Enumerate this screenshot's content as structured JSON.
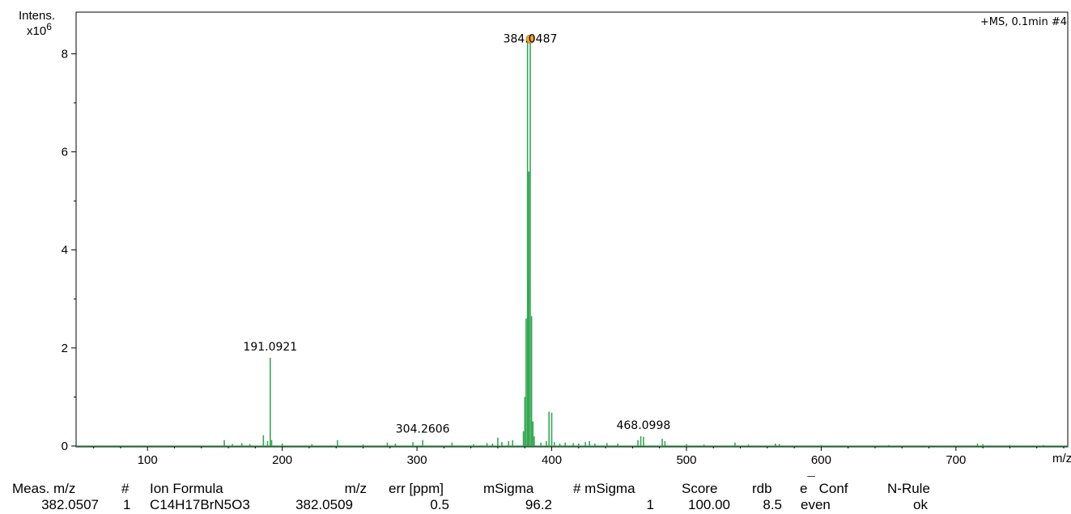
{
  "chart_data": {
    "type": "line",
    "title": "",
    "scan_label": "+MS, 0.1min #4",
    "ylabel": "Intens.",
    "y_multiplier": "x10",
    "y_exponent": "6",
    "xlabel": "m/z",
    "xlim": [
      47,
      783
    ],
    "ylim": [
      0,
      8.85
    ],
    "x_ticks": [
      "100",
      "200",
      "300",
      "400",
      "500",
      "600",
      "700"
    ],
    "y_ticks": [
      "0",
      "2",
      "4",
      "6",
      "8"
    ],
    "series_color": "#33a852",
    "peaks": [
      {
        "x": 157.0,
        "y": 0.12
      },
      {
        "x": 163.0,
        "y": 0.04
      },
      {
        "x": 170.0,
        "y": 0.06
      },
      {
        "x": 176.0,
        "y": 0.04
      },
      {
        "x": 186.0,
        "y": 0.22
      },
      {
        "x": 189.1,
        "y": 0.1
      },
      {
        "x": 191.09,
        "y": 1.8
      },
      {
        "x": 192.1,
        "y": 0.12
      },
      {
        "x": 200.0,
        "y": 0.05
      },
      {
        "x": 222.0,
        "y": 0.04
      },
      {
        "x": 241.0,
        "y": 0.12
      },
      {
        "x": 260.0,
        "y": 0.03
      },
      {
        "x": 278.0,
        "y": 0.07
      },
      {
        "x": 284.0,
        "y": 0.05
      },
      {
        "x": 297.0,
        "y": 0.08
      },
      {
        "x": 304.26,
        "y": 0.12
      },
      {
        "x": 326.0,
        "y": 0.07
      },
      {
        "x": 342.0,
        "y": 0.04
      },
      {
        "x": 352.0,
        "y": 0.06
      },
      {
        "x": 356.0,
        "y": 0.05
      },
      {
        "x": 360.0,
        "y": 0.17
      },
      {
        "x": 363.0,
        "y": 0.08
      },
      {
        "x": 368.0,
        "y": 0.1
      },
      {
        "x": 371.0,
        "y": 0.12
      },
      {
        "x": 379.0,
        "y": 0.3
      },
      {
        "x": 380.05,
        "y": 1.0
      },
      {
        "x": 381.0,
        "y": 2.6
      },
      {
        "x": 382.05,
        "y": 8.3
      },
      {
        "x": 382.6,
        "y": 3.4
      },
      {
        "x": 383.05,
        "y": 5.6
      },
      {
        "x": 384.05,
        "y": 8.3
      },
      {
        "x": 385.05,
        "y": 2.65
      },
      {
        "x": 386.05,
        "y": 0.5
      },
      {
        "x": 387.0,
        "y": 0.2
      },
      {
        "x": 392.0,
        "y": 0.07
      },
      {
        "x": 396.0,
        "y": 0.1
      },
      {
        "x": 398.0,
        "y": 0.7
      },
      {
        "x": 400.0,
        "y": 0.68
      },
      {
        "x": 402.0,
        "y": 0.08
      },
      {
        "x": 406.0,
        "y": 0.05
      },
      {
        "x": 410.0,
        "y": 0.07
      },
      {
        "x": 416.0,
        "y": 0.06
      },
      {
        "x": 420.0,
        "y": 0.05
      },
      {
        "x": 425.0,
        "y": 0.08
      },
      {
        "x": 428.0,
        "y": 0.1
      },
      {
        "x": 432.0,
        "y": 0.05
      },
      {
        "x": 441.0,
        "y": 0.06
      },
      {
        "x": 449.0,
        "y": 0.05
      },
      {
        "x": 464.0,
        "y": 0.12
      },
      {
        "x": 466.1,
        "y": 0.2
      },
      {
        "x": 468.1,
        "y": 0.19
      },
      {
        "x": 482.0,
        "y": 0.15
      },
      {
        "x": 484.0,
        "y": 0.1
      },
      {
        "x": 500.0,
        "y": 0.04
      },
      {
        "x": 513.0,
        "y": 0.03
      },
      {
        "x": 536.0,
        "y": 0.07
      },
      {
        "x": 546.0,
        "y": 0.03
      },
      {
        "x": 566.0,
        "y": 0.05
      },
      {
        "x": 569.0,
        "y": 0.04
      },
      {
        "x": 600.0,
        "y": 0.02
      },
      {
        "x": 650.0,
        "y": 0.02
      },
      {
        "x": 716.0,
        "y": 0.05
      },
      {
        "x": 720.0,
        "y": 0.04
      },
      {
        "x": 740.0,
        "y": 0.02
      },
      {
        "x": 765.0,
        "y": 0.02
      }
    ],
    "annotations": [
      {
        "label": "384.0487",
        "x": 384.05,
        "y": 8.3,
        "marker": true
      },
      {
        "label": "191.0921",
        "x": 191.09,
        "y": 1.8
      },
      {
        "label": "304.2606",
        "x": 304.26,
        "y": 0.12
      },
      {
        "label": "468.0998",
        "x": 468.1,
        "y": 0.2
      }
    ],
    "marker_color": "#f5a623"
  },
  "results_table": {
    "headers": {
      "meas_mz": "Meas. m/z",
      "num": "#",
      "ion_formula": "Ion Formula",
      "mz": "m/z",
      "err": "err [ppm]",
      "msigma": "mSigma",
      "num_msigma": "# mSigma",
      "score": "Score",
      "rdb": "rdb",
      "e_conf_symbol": "e",
      "e_conf_superscript": "¯",
      "e_conf": "Conf",
      "n_rule": "N-Rule"
    },
    "row": {
      "meas_mz": "382.0507",
      "num": "1",
      "ion_formula": "C14H17BrN5O3",
      "mz": "382.0509",
      "err": "0.5",
      "msigma": "96.2",
      "num_msigma": "1",
      "score": "100.00",
      "rdb": "8.5",
      "e_conf": "even",
      "n_rule": "ok"
    }
  }
}
